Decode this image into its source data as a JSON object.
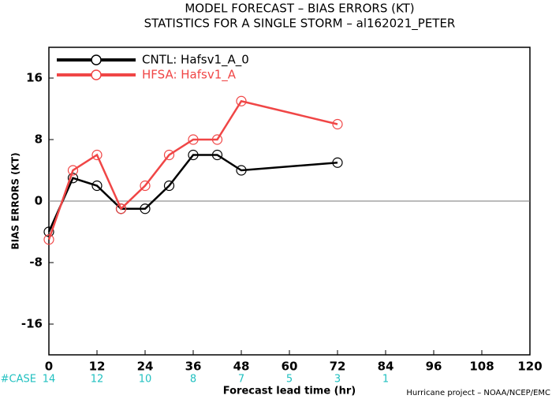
{
  "chart_data": {
    "type": "line",
    "title": "MODEL FORECAST – BIAS ERRORS (KT)",
    "subtitle": "STATISTICS FOR A SINGLE STORM – al162021_PETER",
    "y_label": "BIAS ERRORS (KT)",
    "x_label": "Forecast lead time (hr)",
    "footer": "Hurricane project – NOAA/NCEP/EMC",
    "x": [
      0,
      6,
      12,
      18,
      24,
      30,
      36,
      42,
      48,
      72
    ],
    "series": [
      {
        "name": "CNTL: Hafsv1_A_0",
        "color": "#000000",
        "values": [
          -4,
          3,
          2,
          -1,
          -1,
          2,
          6,
          6,
          4,
          5
        ]
      },
      {
        "name": "HFSA: Hafsv1_A",
        "color": "#f04646",
        "values": [
          -5,
          4,
          6,
          -1,
          2,
          6,
          8,
          8,
          13,
          10
        ]
      }
    ],
    "xlim": [
      0,
      120
    ],
    "xticks": [
      0,
      12,
      24,
      36,
      48,
      60,
      72,
      84,
      96,
      108,
      120
    ],
    "ylim": [
      -20,
      20
    ],
    "yticks": [
      -16,
      -8,
      0,
      8,
      16
    ],
    "zero_line": true,
    "legend": "top-left",
    "case_counts": {
      "label": "#CASE",
      "color": "#20c0c0",
      "x": [
        0,
        12,
        24,
        36,
        48,
        60,
        72,
        84
      ],
      "values": [
        14,
        12,
        10,
        8,
        7,
        5,
        3,
        1
      ]
    }
  }
}
